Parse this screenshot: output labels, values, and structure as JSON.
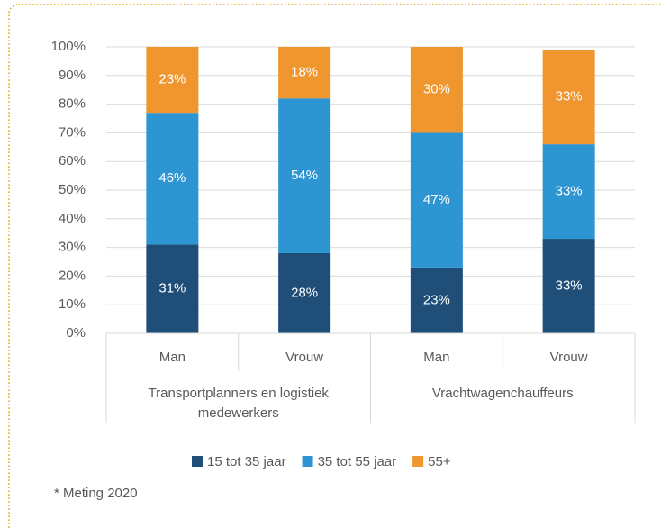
{
  "chart_data": {
    "type": "stacked_bar",
    "categories": [
      "Man",
      "Vrouw",
      "Man",
      "Vrouw"
    ],
    "groups": [
      "Transportplanners en logistiek medewerkers",
      "Vrachtwagenchauffeurs"
    ],
    "series": [
      {
        "name": "15 tot 35 jaar",
        "color": "#1f4e79",
        "values": [
          31,
          28,
          23,
          33
        ],
        "value_labels": [
          "31%",
          "28%",
          "23%",
          "33%"
        ]
      },
      {
        "name": "35 tot 55 jaar",
        "color": "#2e95d3",
        "values": [
          46,
          54,
          47,
          33
        ],
        "value_labels": [
          "46%",
          "54%",
          "47%",
          "33%"
        ]
      },
      {
        "name": "55+",
        "color": "#ef962e",
        "values": [
          23,
          18,
          30,
          33
        ],
        "value_labels": [
          "23%",
          "18%",
          "30%",
          "33%"
        ]
      }
    ],
    "ylim": [
      0,
      100
    ],
    "yticks": [
      {
        "value": 0,
        "label": "0%"
      },
      {
        "value": 10,
        "label": "10%"
      },
      {
        "value": 20,
        "label": "20%"
      },
      {
        "value": 30,
        "label": "30%"
      },
      {
        "value": 40,
        "label": "40%"
      },
      {
        "value": 50,
        "label": "50%"
      },
      {
        "value": 60,
        "label": "60%"
      },
      {
        "value": 70,
        "label": "70%"
      },
      {
        "value": 80,
        "label": "80%"
      },
      {
        "value": 90,
        "label": "90%"
      },
      {
        "value": 100,
        "label": "100%"
      }
    ],
    "grid": true,
    "footnote": "* Meting 2020"
  }
}
